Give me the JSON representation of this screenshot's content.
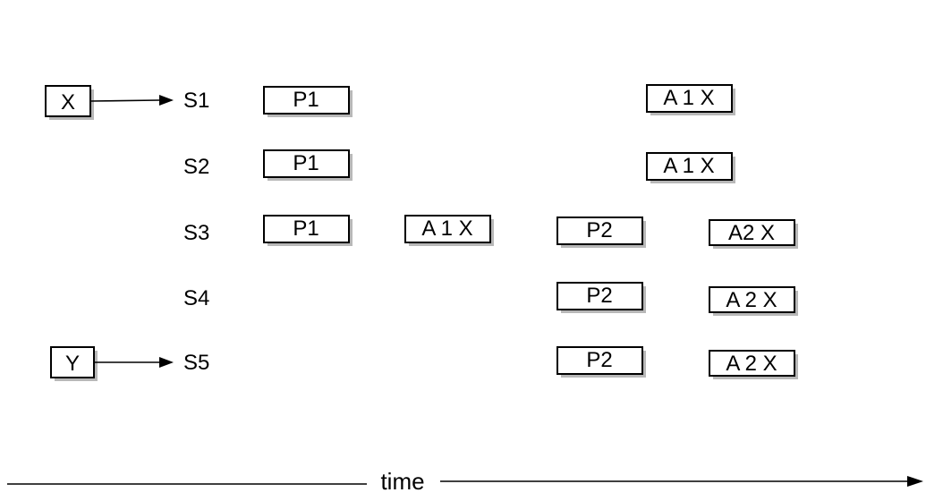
{
  "clients": [
    {
      "id": "x",
      "label": "X",
      "target": "S1"
    },
    {
      "id": "y",
      "label": "Y",
      "target": "S5"
    }
  ],
  "servers": [
    "S1",
    "S2",
    "S3",
    "S4",
    "S5"
  ],
  "messages": [
    {
      "server": "S1",
      "label": "P1"
    },
    {
      "server": "S2",
      "label": "P1"
    },
    {
      "server": "S3",
      "label": "P1"
    },
    {
      "server": "S3",
      "label": "A 1 X"
    },
    {
      "server": "S1",
      "label": "A 1 X"
    },
    {
      "server": "S2",
      "label": "A 1 X"
    },
    {
      "server": "S3",
      "label": "P2"
    },
    {
      "server": "S4",
      "label": "P2"
    },
    {
      "server": "S5",
      "label": "P2"
    },
    {
      "server": "S3",
      "label": "A2 X"
    },
    {
      "server": "S4",
      "label": "A 2 X"
    },
    {
      "server": "S5",
      "label": "A 2 X"
    }
  ],
  "axis": {
    "label": "time"
  }
}
